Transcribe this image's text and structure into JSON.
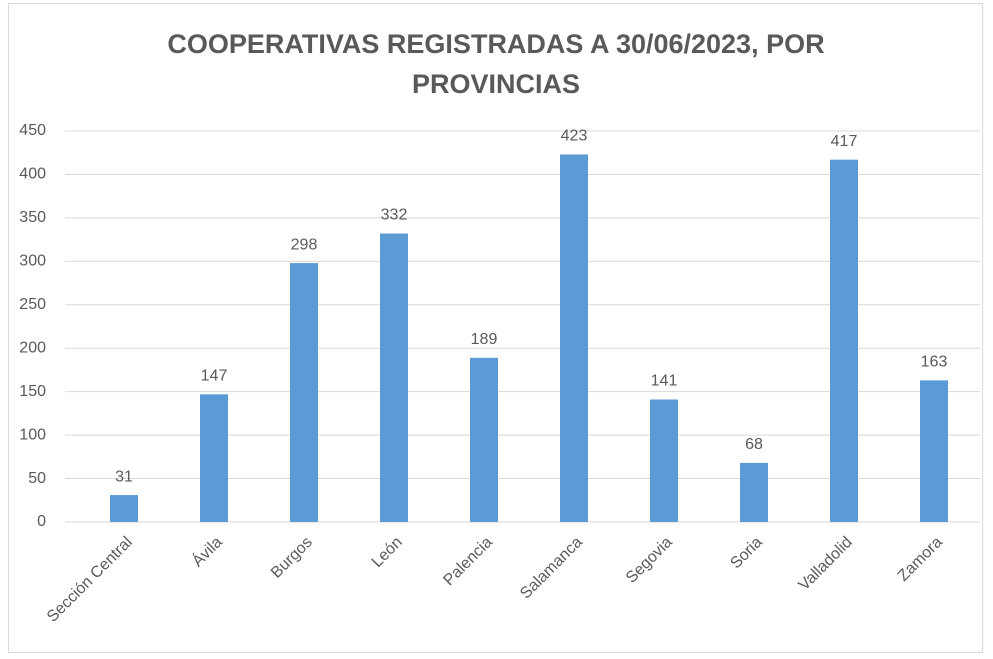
{
  "chart_data": {
    "type": "bar",
    "title": "COOPERATIVAS REGISTRADAS A 30/06/2023, POR PROVINCIAS",
    "categories": [
      "Sección Central",
      "Ávila",
      "Burgos",
      "León",
      "Palencia",
      "Salamanca",
      "Segovia",
      "Soria",
      "Valladolid",
      "Zamora"
    ],
    "values": [
      31,
      147,
      298,
      332,
      189,
      423,
      141,
      68,
      417,
      163
    ],
    "color": "#5b9bd5",
    "ylim": [
      0,
      450
    ],
    "yticks": [
      0,
      50,
      100,
      150,
      200,
      250,
      300,
      350,
      400,
      450
    ],
    "grid": true
  }
}
